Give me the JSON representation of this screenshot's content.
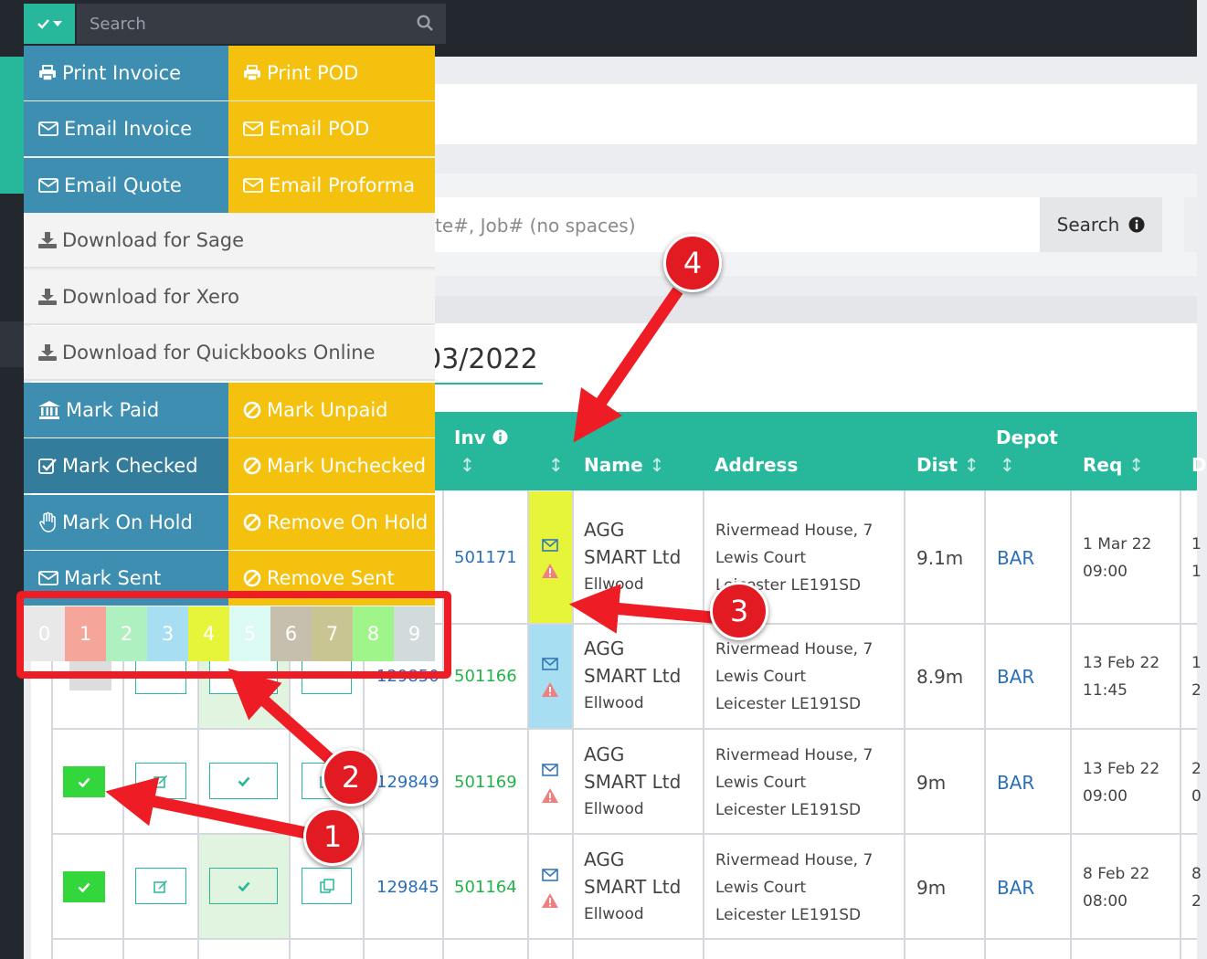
{
  "topbar": {
    "search_placeholder": "Search"
  },
  "background": {
    "search_input_visible_text": "te#, Job# (no spaces)",
    "search_button": "Search",
    "date_title": "/03/2022"
  },
  "menu": {
    "print_invoice": "Print Invoice",
    "print_pod": "Print POD",
    "email_invoice": "Email Invoice",
    "email_pod": "Email POD",
    "email_quote": "Email Quote",
    "email_proforma": "Email Proforma",
    "download_sage": "Download for Sage",
    "download_xero": "Download for Xero",
    "download_quickbooks": "Download for Quickbooks Online",
    "mark_paid": "Mark Paid",
    "mark_unpaid": "Mark Unpaid",
    "mark_checked": "Mark Checked",
    "mark_unchecked": "Mark Unchecked",
    "mark_on_hold": "Mark On Hold",
    "remove_on_hold": "Remove On Hold",
    "mark_sent": "Mark Sent",
    "remove_sent": "Remove Sent"
  },
  "palette": [
    {
      "label": "0",
      "color": "#e8e8e8"
    },
    {
      "label": "1",
      "color": "#f6a59b"
    },
    {
      "label": "2",
      "color": "#aef0c0"
    },
    {
      "label": "3",
      "color": "#a8def2"
    },
    {
      "label": "4",
      "color": "#e6f53a"
    },
    {
      "label": "5",
      "color": "#dcfaf4"
    },
    {
      "label": "6",
      "color": "#c7bfae"
    },
    {
      "label": "7",
      "color": "#c9c592"
    },
    {
      "label": "8",
      "color": "#9ff58a"
    },
    {
      "label": "9",
      "color": "#d1dbdc"
    }
  ],
  "table": {
    "headers": {
      "inv": "Inv",
      "name": "Name",
      "address": "Address",
      "dist": "Dist",
      "depot": "Depot",
      "req": "Req",
      "edge": "D"
    },
    "rows": [
      {
        "inv": "",
        "job": "501171",
        "name": [
          "AGG",
          "SMART Ltd",
          "Ellwood"
        ],
        "address": [
          "Rivermead House, 7",
          "Lewis Court",
          "Leicester LE191SD"
        ],
        "dist": "9.1m",
        "depot": "BAR",
        "req": [
          "1 Mar 22",
          "09:00"
        ],
        "edge": [
          "1",
          "1"
        ],
        "flag_color": "#e6f53a"
      },
      {
        "inv": "129850",
        "job": "501166",
        "name": [
          "AGG",
          "SMART Ltd",
          "Ellwood"
        ],
        "address": [
          "Rivermead House, 7",
          "Lewis Court",
          "Leicester LE191SD"
        ],
        "dist": "8.9m",
        "depot": "BAR",
        "req": [
          "13 Feb 22",
          "11:45"
        ],
        "edge": [
          "1",
          "2"
        ],
        "flag_color": "#a8def2"
      },
      {
        "inv": "129849",
        "job": "501169",
        "name": [
          "AGG",
          "SMART Ltd",
          "Ellwood"
        ],
        "address": [
          "Rivermead House, 7",
          "Lewis Court",
          "Leicester LE191SD"
        ],
        "dist": "9m",
        "depot": "BAR",
        "req": [
          "13 Feb 22",
          "09:00"
        ],
        "edge": [
          "2",
          "0"
        ],
        "flag_color": ""
      },
      {
        "inv": "129845",
        "job": "501164",
        "name": [
          "AGG",
          "SMART Ltd",
          "Ellwood"
        ],
        "address": [
          "Rivermead House, 7",
          "Lewis Court",
          "Leicester LE191SD"
        ],
        "dist": "9m",
        "depot": "BAR",
        "req": [
          "8 Feb 22",
          "08:00"
        ],
        "edge": [
          "8",
          "2"
        ],
        "flag_color": ""
      }
    ]
  },
  "callouts": [
    "1",
    "2",
    "3",
    "4"
  ],
  "colors": {
    "accent": "#27b79a",
    "menu_blue": "#3d8eb0",
    "menu_yellow": "#f4c20e",
    "callout_red": "#e21b22",
    "check_green": "#33d63b"
  }
}
